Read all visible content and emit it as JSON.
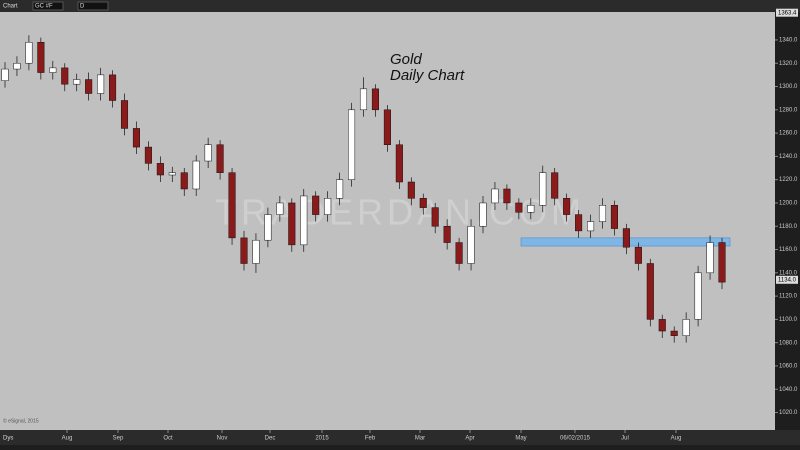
{
  "toolbar": {
    "window": "Chart",
    "symbol": "GC #F",
    "interval": "D"
  },
  "chart_data": {
    "type": "candlestick",
    "title": "Gold",
    "subtitle": "Daily Chart",
    "watermark": "TRADERDAN.COM",
    "copyright": "© eSignal, 2015",
    "x_unit": "Dys",
    "up_color": "#ffffff",
    "down_color": "#8b1a1a",
    "zone": {
      "ylim": [
        1163,
        1170
      ],
      "color": "#7fb6e6"
    },
    "ylim": [
      1005,
      1364
    ],
    "yticks": [
      {
        "value": 1340,
        "label": "1340.0"
      },
      {
        "value": 1320,
        "label": "1320.0"
      },
      {
        "value": 1300,
        "label": "1300.0"
      },
      {
        "value": 1280,
        "label": "1280.0"
      },
      {
        "value": 1260,
        "label": "1260.0"
      },
      {
        "value": 1240,
        "label": "1240.0"
      },
      {
        "value": 1220,
        "label": "1220.0"
      },
      {
        "value": 1200,
        "label": "1200.0"
      },
      {
        "value": 1180,
        "label": "1180.0"
      },
      {
        "value": 1160,
        "label": "1160.0"
      },
      {
        "value": 1140,
        "label": "1140.0"
      },
      {
        "value": 1120,
        "label": "1120.0"
      },
      {
        "value": 1100,
        "label": "1100.0"
      },
      {
        "value": 1080,
        "label": "1080.0"
      },
      {
        "value": 1060,
        "label": "1060.0"
      },
      {
        "value": 1040,
        "label": "1040.0"
      },
      {
        "value": 1020,
        "label": "1020.0"
      }
    ],
    "price_markers": [
      {
        "value": 1363.4,
        "label": "1363.4"
      },
      {
        "value": 1134,
        "label": "1134.0"
      }
    ],
    "months": [
      "Aug",
      "Sep",
      "Oct",
      "Nov",
      "Dec",
      "2015",
      "Feb",
      "Mar",
      "Apr",
      "May",
      "06/02/2015",
      "Jul",
      "Aug"
    ],
    "open": [
      1305,
      1315,
      1320,
      1338,
      1312,
      1316,
      1302,
      1306,
      1294,
      1310,
      1288,
      1264,
      1248,
      1234,
      1224,
      1226,
      1212,
      1236,
      1250,
      1226,
      1170,
      1148,
      1168,
      1190,
      1200,
      1164,
      1206,
      1190,
      1204,
      1220,
      1280,
      1298,
      1280,
      1250,
      1218,
      1204,
      1196,
      1180,
      1166,
      1148,
      1180,
      1200,
      1212,
      1200,
      1192,
      1198,
      1226,
      1204,
      1190,
      1176,
      1184,
      1198,
      1178,
      1162,
      1148,
      1100,
      1090,
      1086,
      1100,
      1140,
      1166
    ],
    "high": [
      1321,
      1326,
      1344,
      1342,
      1322,
      1320,
      1311,
      1312,
      1316,
      1314,
      1294,
      1270,
      1253,
      1240,
      1231,
      1230,
      1241,
      1256,
      1254,
      1230,
      1176,
      1174,
      1196,
      1206,
      1204,
      1212,
      1210,
      1210,
      1226,
      1286,
      1308,
      1302,
      1284,
      1254,
      1222,
      1208,
      1200,
      1186,
      1170,
      1186,
      1206,
      1218,
      1216,
      1204,
      1204,
      1232,
      1230,
      1208,
      1194,
      1190,
      1204,
      1202,
      1182,
      1166,
      1152,
      1104,
      1094,
      1106,
      1146,
      1172,
      1170
    ],
    "low": [
      1299,
      1309,
      1314,
      1306,
      1306,
      1296,
      1296,
      1288,
      1288,
      1282,
      1258,
      1242,
      1228,
      1218,
      1218,
      1206,
      1206,
      1230,
      1220,
      1164,
      1142,
      1140,
      1162,
      1184,
      1158,
      1158,
      1184,
      1184,
      1198,
      1214,
      1274,
      1274,
      1244,
      1212,
      1198,
      1190,
      1174,
      1160,
      1142,
      1142,
      1174,
      1194,
      1194,
      1186,
      1186,
      1192,
      1198,
      1184,
      1170,
      1170,
      1178,
      1172,
      1156,
      1142,
      1094,
      1084,
      1080,
      1080,
      1094,
      1134,
      1126
    ],
    "close": [
      1315,
      1320,
      1338,
      1312,
      1316,
      1302,
      1306,
      1294,
      1310,
      1288,
      1264,
      1248,
      1234,
      1224,
      1226,
      1212,
      1236,
      1250,
      1226,
      1170,
      1148,
      1168,
      1190,
      1200,
      1164,
      1206,
      1190,
      1204,
      1220,
      1280,
      1298,
      1280,
      1250,
      1218,
      1204,
      1196,
      1180,
      1166,
      1148,
      1180,
      1200,
      1212,
      1200,
      1192,
      1198,
      1226,
      1204,
      1190,
      1176,
      1184,
      1198,
      1178,
      1162,
      1148,
      1100,
      1090,
      1086,
      1100,
      1140,
      1166,
      1132
    ]
  }
}
